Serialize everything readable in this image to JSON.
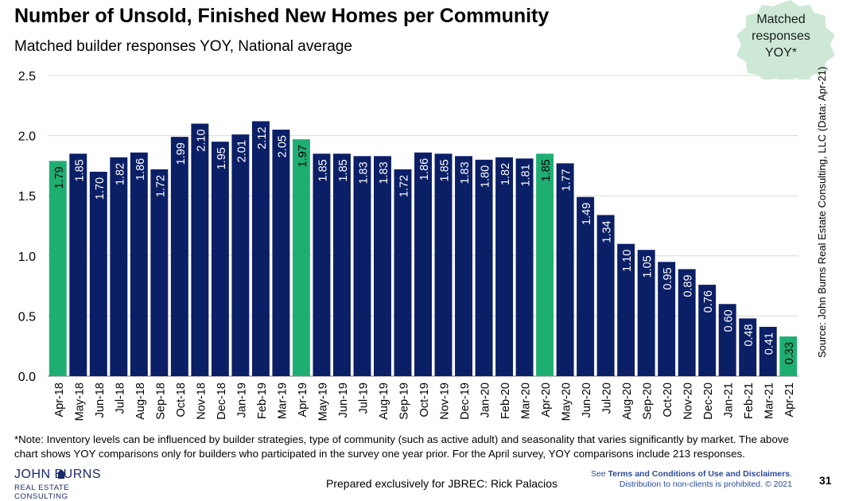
{
  "header": {
    "title": "Number of Unsold, Finished New Homes per Community",
    "subtitle": "Matched builder responses YOY, National average"
  },
  "badge": {
    "line1": "Matched",
    "line2": "responses",
    "line3": "YOY*"
  },
  "source": "Source: John Burns Real Estate Consulting, LLC (Data: Apr-21)",
  "chart_data": {
    "type": "bar",
    "title": "Number of Unsold, Finished New Homes per Community",
    "xlabel": "",
    "ylabel": "",
    "ylim": [
      0,
      2.5
    ],
    "yticks": [
      "0.0",
      "0.5",
      "1.0",
      "1.5",
      "2.0",
      "2.5"
    ],
    "grid": true,
    "categories": [
      "Apr-18",
      "May-18",
      "Jun-18",
      "Jul-18",
      "Aug-18",
      "Sep-18",
      "Oct-18",
      "Nov-18",
      "Dec-18",
      "Jan-19",
      "Feb-19",
      "Mar-19",
      "Apr-19",
      "May-19",
      "Jun-19",
      "Jul-19",
      "Aug-19",
      "Sep-19",
      "Oct-19",
      "Nov-19",
      "Dec-19",
      "Jan-20",
      "Feb-20",
      "Mar-20",
      "Apr-20",
      "May-20",
      "Jun-20",
      "Jul-20",
      "Aug-20",
      "Sep-20",
      "Oct-20",
      "Nov-20",
      "Dec-20",
      "Jan-21",
      "Feb-21",
      "Mar-21",
      "Apr-21"
    ],
    "values": [
      1.79,
      1.85,
      1.7,
      1.82,
      1.86,
      1.72,
      1.99,
      2.1,
      1.95,
      2.01,
      2.12,
      2.05,
      1.97,
      1.85,
      1.85,
      1.83,
      1.83,
      1.72,
      1.86,
      1.85,
      1.83,
      1.8,
      1.82,
      1.81,
      1.85,
      1.77,
      1.49,
      1.34,
      1.1,
      1.05,
      0.95,
      0.89,
      0.76,
      0.6,
      0.48,
      0.41,
      0.33
    ],
    "labels": [
      "1.79",
      "1.85",
      "1.70",
      "1.82",
      "1.86",
      "1.72",
      "1.99",
      "2.10",
      "1.95",
      "2.01",
      "2.12",
      "2.05",
      "1.97",
      "1.85",
      "1.85",
      "1.83",
      "1.83",
      "1.72",
      "1.86",
      "1.85",
      "1.83",
      "1.80",
      "1.82",
      "1.81",
      "1.85",
      "1.77",
      "1.49",
      "1.34",
      "1.10",
      "1.05",
      "0.95",
      "0.89",
      "0.76",
      "0.60",
      "0.48",
      "0.41",
      "0.33"
    ],
    "highlight": [
      "Apr-18",
      "Apr-19",
      "Apr-20",
      "Apr-21"
    ],
    "colors": {
      "default": "#0b1f66",
      "highlight": "#1fae72"
    }
  },
  "footer": {
    "note": "*Note: Inventory levels can be influenced by builder strategies, type of community (such as active adult) and seasonality that varies significantly by market. The above chart shows YOY comparisons only for builders who participated in the survey one year prior. For the April survey, YOY comparisons include 213 responses.",
    "logo_main": "JOHN    BURNS",
    "logo_sub": "REAL ESTATE CONSULTING",
    "prepared": "Prepared exclusively for JBREC: Rick Palacios",
    "terms_prefix": "See ",
    "terms_bold": "Terms and Conditions of Use and Disclaimers",
    "terms_suffix": ".",
    "distribution": "Distribution to non-clients is prohibited. © 2021",
    "page": "31"
  }
}
